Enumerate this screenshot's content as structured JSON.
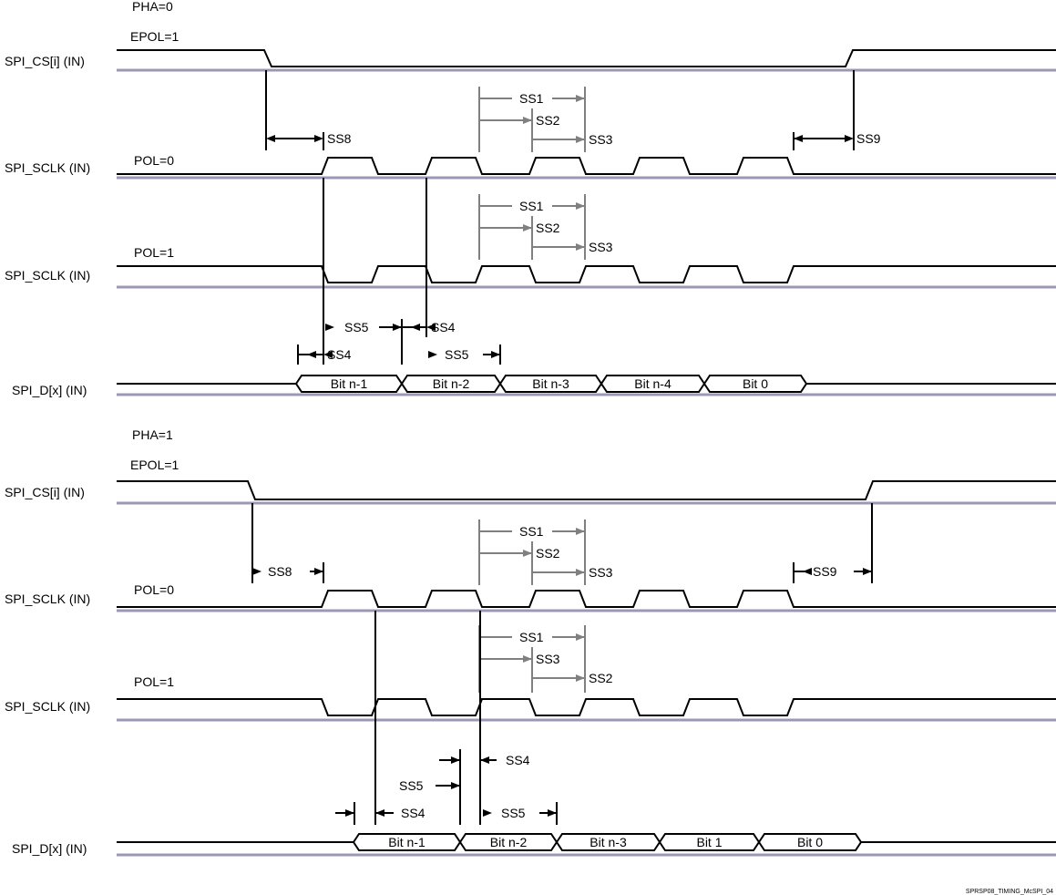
{
  "colors": {
    "signal": "#000000",
    "baseline": "#9a98b4",
    "timing_gray": "#808080"
  },
  "sections": [
    {
      "pha": "PHA=0",
      "epol": "EPOL=1",
      "cs_label": "SPI_CS[i] (IN)",
      "sclk0_label": "SPI_SCLK (IN)",
      "pol0": "POL=0",
      "sclk1_label": "SPI_SCLK (IN)",
      "pol1": "POL=1",
      "data_label": "SPI_D[x] (IN)",
      "bits": [
        "Bit n-1",
        "Bit n-2",
        "Bit n-3",
        "Bit n-4",
        "Bit 0"
      ],
      "timing": {
        "ss8": "SS8",
        "ss9": "SS9",
        "g1": [
          "SS1",
          "SS2",
          "SS3"
        ],
        "g2": [
          "SS1",
          "SS2",
          "SS3"
        ],
        "ss5a": "SS5",
        "ss4a": "SS4",
        "ss4b": "SS4",
        "ss5b": "SS5"
      }
    },
    {
      "pha": "PHA=1",
      "epol": "EPOL=1",
      "cs_label": "SPI_CS[i] (IN)",
      "sclk0_label": "SPI_SCLK (IN)",
      "pol0": "POL=0",
      "sclk1_label": "SPI_SCLK (IN)",
      "pol1": "POL=1",
      "data_label": "SPI_D[x] (IN)",
      "bits": [
        "Bit n-1",
        "Bit n-2",
        "Bit n-3",
        "Bit 1",
        "Bit 0"
      ],
      "timing": {
        "ss8": "SS8",
        "ss9": "SS9",
        "g1": [
          "SS1",
          "SS2",
          "SS3"
        ],
        "g2": [
          "SS1",
          "SS3",
          "SS2"
        ],
        "ss4a": "SS4",
        "ss5a": "SS5",
        "ss4b": "SS4",
        "ss5b": "SS5"
      }
    }
  ],
  "figure_id": "SPRSP08_TIMING_McSPI_04"
}
